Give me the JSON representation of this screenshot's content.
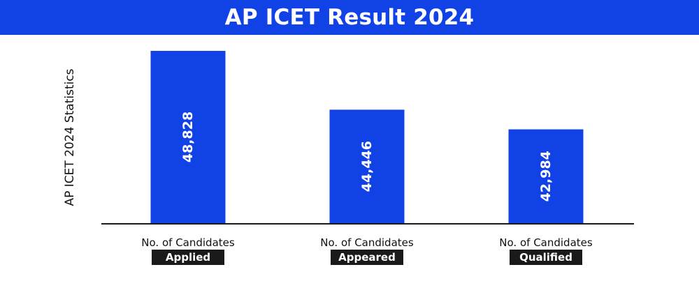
{
  "chart_data": {
    "type": "bar",
    "title": "AP ICET Result 2024",
    "xlabel": "",
    "ylabel": "AP ICET 2024 Statistics",
    "categories": [
      {
        "line1": "No. of Candidates",
        "tag": "Applied"
      },
      {
        "line1": "No. of Candidates",
        "tag": "Appeared"
      },
      {
        "line1": "No. of Candidates",
        "tag": "Qualified"
      }
    ],
    "values": [
      48828,
      44446,
      42984
    ],
    "value_labels": [
      "48,828",
      "44,446",
      "42,984"
    ],
    "ylim": [
      36000,
      49500
    ],
    "grid": false,
    "bar_color": "#1142E6"
  }
}
